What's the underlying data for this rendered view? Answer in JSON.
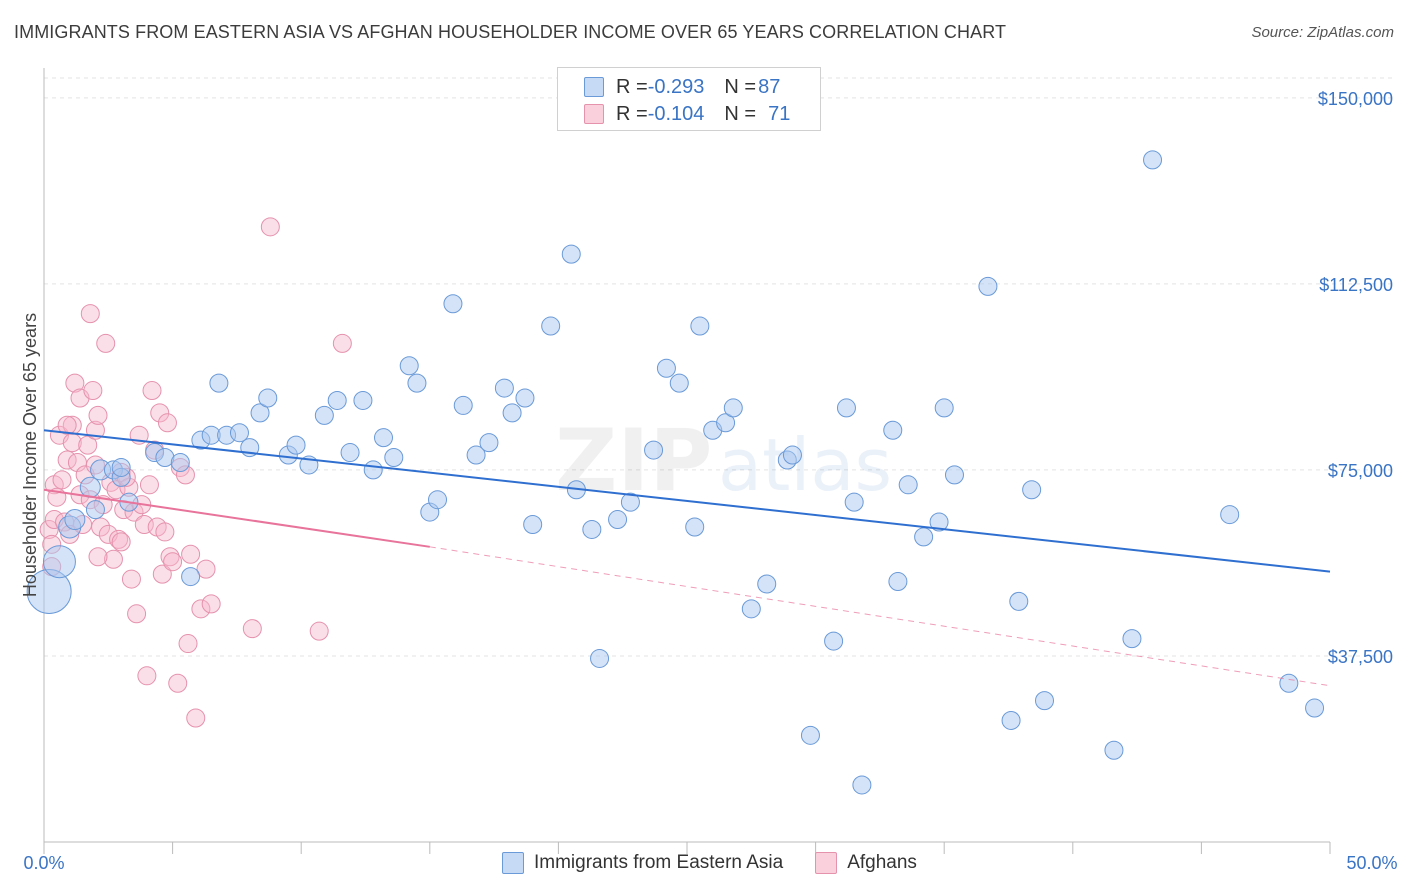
{
  "title": "IMMIGRANTS FROM EASTERN ASIA VS AFGHAN HOUSEHOLDER INCOME OVER 65 YEARS CORRELATION CHART",
  "source": "Source: ZipAtlas.com",
  "watermark": {
    "zip": "ZIP",
    "atlas": "atlas"
  },
  "legend_top": {
    "rows": [
      {
        "r_label": "R = ",
        "r_value": "-0.293",
        "n_label": "N = ",
        "n_value": "87",
        "color": "#a9c7ef"
      },
      {
        "r_label": "R = ",
        "r_value": "-0.104",
        "n_label": "N = ",
        "n_value": "71",
        "color": "#f7b8cb"
      }
    ]
  },
  "legend_bottom": [
    {
      "label": "Immigrants from Eastern Asia",
      "color": "#a9c7ef"
    },
    {
      "label": "Afghans",
      "color": "#f7b8cb"
    }
  ],
  "colors": {
    "blue_fill": "#a9c7ef",
    "blue_stroke": "#6a9ad8",
    "blue_line": "#2f6fd0",
    "pink_fill": "#f7b8cb",
    "pink_stroke": "#e592ad",
    "pink_line": "#e8739b",
    "grid": "#e3e3e3",
    "tick_label": "#3a74c4"
  },
  "chart_data": {
    "type": "scatter",
    "title": "IMMIGRANTS FROM EASTERN ASIA VS AFGHAN HOUSEHOLDER INCOME OVER 65 YEARS CORRELATION CHART",
    "xlabel": "",
    "ylabel": "Householder Income Over 65 years",
    "xlim": [
      0,
      50
    ],
    "ylim": [
      0,
      154000
    ],
    "x_tick_labels": [
      "0.0%",
      "50.0%"
    ],
    "y_ticks": [
      37500,
      75000,
      112500,
      150000
    ],
    "y_tick_labels": [
      "$37,500",
      "$75,000",
      "$112,500",
      "$150,000"
    ],
    "grid": true,
    "legend_position": "top-center",
    "series": [
      {
        "name": "Immigrants from Eastern Asia",
        "trend": {
          "x": [
            0,
            50
          ],
          "y": [
            83000,
            54500
          ]
        },
        "points": [
          [
            0.2,
            50500,
            22
          ],
          [
            0.6,
            56500,
            16
          ],
          [
            1.0,
            63500,
            11
          ],
          [
            1.2,
            65000,
            10
          ],
          [
            1.8,
            71500,
            10
          ],
          [
            2.0,
            67000,
            9
          ],
          [
            2.2,
            75000,
            10
          ],
          [
            2.7,
            75000,
            9
          ],
          [
            3.0,
            73500,
            9
          ],
          [
            3.0,
            75500,
            9
          ],
          [
            3.3,
            68500,
            9
          ],
          [
            4.3,
            78500,
            9
          ],
          [
            4.7,
            77500,
            9
          ],
          [
            5.3,
            76500,
            9
          ],
          [
            5.7,
            53500,
            9
          ],
          [
            6.1,
            81000,
            9
          ],
          [
            6.5,
            82000,
            9
          ],
          [
            6.8,
            92500,
            9
          ],
          [
            7.1,
            82000,
            9
          ],
          [
            7.6,
            82500,
            9
          ],
          [
            8.0,
            79500,
            9
          ],
          [
            8.4,
            86500,
            9
          ],
          [
            8.7,
            89500,
            9
          ],
          [
            9.5,
            78000,
            9
          ],
          [
            9.8,
            80000,
            9
          ],
          [
            10.3,
            76000,
            9
          ],
          [
            10.9,
            86000,
            9
          ],
          [
            11.4,
            89000,
            9
          ],
          [
            11.9,
            78500,
            9
          ],
          [
            12.4,
            89000,
            9
          ],
          [
            12.8,
            75000,
            9
          ],
          [
            13.2,
            81500,
            9
          ],
          [
            13.6,
            77500,
            9
          ],
          [
            14.2,
            96000,
            9
          ],
          [
            14.5,
            92500,
            9
          ],
          [
            15.0,
            66500,
            9
          ],
          [
            15.3,
            69000,
            9
          ],
          [
            15.9,
            108500,
            9
          ],
          [
            16.3,
            88000,
            9
          ],
          [
            16.8,
            78000,
            9
          ],
          [
            17.3,
            80500,
            9
          ],
          [
            17.9,
            91500,
            9
          ],
          [
            18.2,
            86500,
            9
          ],
          [
            18.7,
            89500,
            9
          ],
          [
            19.0,
            64000,
            9
          ],
          [
            19.7,
            104000,
            9
          ],
          [
            20.5,
            118500,
            9
          ],
          [
            20.7,
            71000,
            9
          ],
          [
            21.3,
            63000,
            9
          ],
          [
            21.6,
            37000,
            9
          ],
          [
            22.3,
            65000,
            9
          ],
          [
            22.8,
            68500,
            9
          ],
          [
            23.7,
            79000,
            9
          ],
          [
            24.2,
            95500,
            9
          ],
          [
            24.7,
            92500,
            9
          ],
          [
            25.3,
            63500,
            9
          ],
          [
            25.5,
            104000,
            9
          ],
          [
            26.0,
            83000,
            9
          ],
          [
            26.5,
            84500,
            9
          ],
          [
            26.8,
            87500,
            9
          ],
          [
            27.5,
            47000,
            9
          ],
          [
            28.1,
            52000,
            9
          ],
          [
            28.9,
            77000,
            9
          ],
          [
            29.1,
            78000,
            9
          ],
          [
            29.8,
            21500,
            9
          ],
          [
            30.7,
            40500,
            9
          ],
          [
            31.2,
            87500,
            9
          ],
          [
            31.5,
            68500,
            9
          ],
          [
            31.8,
            11500,
            9
          ],
          [
            33.0,
            83000,
            9
          ],
          [
            33.2,
            52500,
            9
          ],
          [
            33.6,
            72000,
            9
          ],
          [
            34.2,
            61500,
            9
          ],
          [
            34.8,
            64500,
            9
          ],
          [
            35.0,
            87500,
            9
          ],
          [
            35.4,
            74000,
            9
          ],
          [
            36.7,
            112000,
            9
          ],
          [
            37.6,
            24500,
            9
          ],
          [
            37.9,
            48500,
            9
          ],
          [
            38.4,
            71000,
            9
          ],
          [
            38.9,
            28500,
            9
          ],
          [
            41.6,
            18500,
            9
          ],
          [
            42.3,
            41000,
            9
          ],
          [
            43.1,
            137500,
            9
          ],
          [
            46.1,
            66000,
            9
          ],
          [
            48.4,
            32000,
            9
          ],
          [
            49.4,
            27000,
            9
          ]
        ]
      },
      {
        "name": "Afghans",
        "trend": {
          "x": [
            0,
            15
          ],
          "y": [
            71000,
            59500
          ],
          "dashed_extension": {
            "x": [
              15,
              50
            ],
            "y": [
              59500,
              31500
            ]
          }
        },
        "points": [
          [
            0.2,
            63000,
            9
          ],
          [
            0.3,
            60000,
            9
          ],
          [
            0.3,
            55500,
            9
          ],
          [
            0.4,
            65000,
            9
          ],
          [
            0.4,
            72000,
            9
          ],
          [
            0.5,
            69500,
            9
          ],
          [
            0.6,
            82000,
            9
          ],
          [
            0.7,
            73000,
            9
          ],
          [
            0.8,
            64500,
            9
          ],
          [
            0.9,
            77000,
            9
          ],
          [
            1.0,
            62000,
            9
          ],
          [
            1.1,
            80500,
            9
          ],
          [
            1.1,
            84000,
            9
          ],
          [
            1.2,
            92500,
            9
          ],
          [
            1.3,
            76500,
            9
          ],
          [
            1.4,
            89500,
            9
          ],
          [
            1.4,
            70000,
            9
          ],
          [
            1.5,
            64000,
            9
          ],
          [
            1.6,
            74000,
            9
          ],
          [
            1.7,
            80000,
            9
          ],
          [
            1.8,
            69000,
            9
          ],
          [
            1.8,
            106500,
            9
          ],
          [
            1.9,
            91000,
            9
          ],
          [
            2.0,
            83000,
            9
          ],
          [
            2.0,
            76000,
            9
          ],
          [
            2.1,
            86000,
            9
          ],
          [
            2.2,
            63500,
            9
          ],
          [
            2.3,
            68000,
            9
          ],
          [
            2.4,
            100500,
            9
          ],
          [
            2.5,
            62000,
            9
          ],
          [
            2.6,
            72500,
            9
          ],
          [
            2.7,
            57000,
            9
          ],
          [
            2.8,
            71000,
            9
          ],
          [
            2.9,
            61000,
            9
          ],
          [
            3.0,
            74500,
            9
          ],
          [
            3.0,
            60500,
            9
          ],
          [
            3.1,
            67000,
            9
          ],
          [
            3.3,
            71500,
            9
          ],
          [
            3.4,
            53000,
            9
          ],
          [
            3.5,
            66500,
            9
          ],
          [
            3.6,
            46000,
            9
          ],
          [
            3.7,
            82000,
            9
          ],
          [
            3.8,
            68000,
            9
          ],
          [
            3.9,
            64000,
            9
          ],
          [
            4.0,
            33500,
            9
          ],
          [
            4.1,
            72000,
            9
          ],
          [
            4.2,
            91000,
            9
          ],
          [
            4.4,
            63500,
            9
          ],
          [
            4.5,
            86500,
            9
          ],
          [
            4.6,
            54000,
            9
          ],
          [
            4.7,
            62500,
            9
          ],
          [
            4.8,
            84500,
            9
          ],
          [
            4.9,
            57500,
            9
          ],
          [
            5.0,
            56500,
            9
          ],
          [
            5.2,
            32000,
            9
          ],
          [
            5.3,
            75500,
            9
          ],
          [
            5.5,
            74000,
            9
          ],
          [
            5.6,
            40000,
            9
          ],
          [
            5.7,
            58000,
            9
          ],
          [
            5.9,
            25000,
            9
          ],
          [
            6.1,
            47000,
            9
          ],
          [
            6.3,
            55000,
            9
          ],
          [
            6.5,
            48000,
            9
          ],
          [
            8.1,
            43000,
            9
          ],
          [
            8.8,
            124000,
            9
          ],
          [
            10.7,
            42500,
            9
          ],
          [
            11.6,
            100500,
            9
          ],
          [
            0.9,
            84000,
            9
          ],
          [
            2.1,
            57500,
            9
          ],
          [
            3.2,
            73500,
            9
          ],
          [
            4.3,
            79000,
            9
          ]
        ]
      }
    ]
  }
}
